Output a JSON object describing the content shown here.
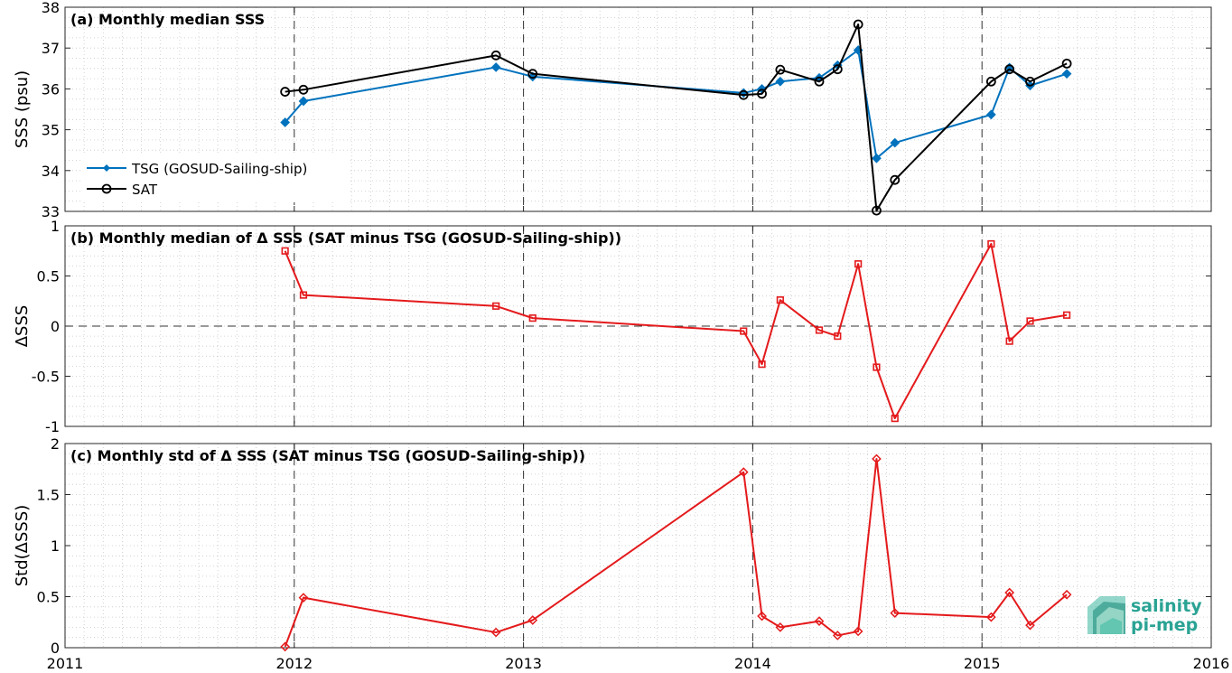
{
  "chart_data": [
    {
      "type": "line",
      "title": "(a) Monthly median SSS",
      "ylabel": "SSS (psu)",
      "xlim": [
        2011,
        2016
      ],
      "ylim": [
        33,
        38
      ],
      "yticks": [
        "33",
        "34",
        "35",
        "36",
        "37",
        "38"
      ],
      "grid": true,
      "legend_placement": "lower-left",
      "series": [
        {
          "name": "TSG (GOSUD-Sailing-ship)",
          "color": "#0072bd",
          "marker": "diamond-filled",
          "x": [
            2011.96,
            2012.04,
            2012.88,
            2013.04,
            2013.96,
            2014.04,
            2014.12,
            2014.29,
            2014.37,
            2014.46,
            2014.54,
            2014.62,
            2015.04,
            2015.12,
            2015.21,
            2015.37
          ],
          "values": [
            35.18,
            35.7,
            36.53,
            36.3,
            35.9,
            36.0,
            36.18,
            36.27,
            36.58,
            36.95,
            34.3,
            34.68,
            35.37,
            36.52,
            36.08,
            36.37
          ]
        },
        {
          "name": "SAT",
          "color": "#000000",
          "marker": "circle-open",
          "x": [
            2011.96,
            2012.04,
            2012.88,
            2013.04,
            2013.96,
            2014.04,
            2014.12,
            2014.29,
            2014.37,
            2014.46,
            2014.54,
            2014.62,
            2015.04,
            2015.12,
            2015.21,
            2015.37
          ],
          "values": [
            35.93,
            35.98,
            36.82,
            36.37,
            35.85,
            35.88,
            36.47,
            36.18,
            36.48,
            37.58,
            33.02,
            33.77,
            36.18,
            36.48,
            36.18,
            36.62
          ]
        }
      ]
    },
    {
      "type": "line",
      "title": "(b) Monthly median of Δ SSS (SAT minus TSG (GOSUD-Sailing-ship))",
      "ylabel": "ΔSSS",
      "xlim": [
        2011,
        2016
      ],
      "ylim": [
        -1,
        1
      ],
      "yticks": [
        "-1",
        "-0.5",
        "0",
        "0.5",
        "1"
      ],
      "zero_line": true,
      "grid": true,
      "series": [
        {
          "color": "#e41a1c",
          "marker": "square-open",
          "x": [
            2011.96,
            2012.04,
            2012.88,
            2013.04,
            2013.96,
            2014.04,
            2014.12,
            2014.29,
            2014.37,
            2014.46,
            2014.54,
            2014.62,
            2015.04,
            2015.12,
            2015.21,
            2015.37
          ],
          "values": [
            0.75,
            0.31,
            0.2,
            0.08,
            -0.05,
            -0.38,
            0.26,
            -0.04,
            -0.1,
            0.62,
            -0.41,
            -0.92,
            0.82,
            -0.15,
            0.05,
            0.11
          ]
        }
      ]
    },
    {
      "type": "line",
      "title": "(c) Monthly std of Δ SSS (SAT minus TSG (GOSUD-Sailing-ship))",
      "ylabel": "Std(ΔSSS)",
      "xlim": [
        2011,
        2016
      ],
      "ylim": [
        0,
        2
      ],
      "yticks": [
        "0",
        "0.5",
        "1",
        "1.5",
        "2"
      ],
      "xticks": [
        "2011",
        "2012",
        "2013",
        "2014",
        "2015",
        "2016"
      ],
      "grid": true,
      "series": [
        {
          "color": "#e41a1c",
          "marker": "diamond-open",
          "x": [
            2011.96,
            2012.04,
            2012.88,
            2013.04,
            2013.96,
            2014.04,
            2014.12,
            2014.29,
            2014.37,
            2014.46,
            2014.54,
            2014.62,
            2015.04,
            2015.12,
            2015.21,
            2015.37
          ],
          "values": [
            0.01,
            0.49,
            0.15,
            0.27,
            1.72,
            0.31,
            0.2,
            0.26,
            0.12,
            0.16,
            1.85,
            0.34,
            0.3,
            0.54,
            0.22,
            0.52
          ]
        }
      ]
    }
  ],
  "logo": {
    "line1": "salinity",
    "line2": "pi-mep",
    "color": "#2aa394"
  }
}
